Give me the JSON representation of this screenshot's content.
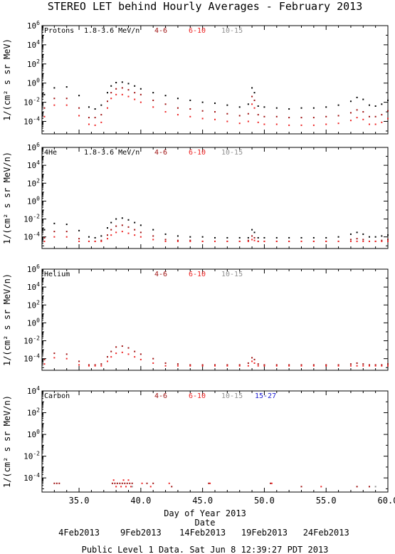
{
  "title": "STEREO LET behind Hourly Averages - February 2013",
  "footer": "Public Level 1 Data. Sat Jun  8 12:39:27 PDT 2013",
  "xaxis": {
    "label": "Day of Year 2013",
    "range": [
      32,
      60
    ],
    "tick_labels": [
      "35.0",
      "40.0",
      "45.0",
      "50.0",
      "55.0",
      "60.0"
    ],
    "date_title": "Date",
    "date_labels": [
      "4Feb2013",
      "9Feb2013",
      "14Feb2013",
      "19Feb2013",
      "24Feb2013"
    ]
  },
  "colors": {
    "black": "#000000",
    "darkred": "#9e1010",
    "red": "#ee2222",
    "gray": "#909090",
    "blue": "#1a1ad0"
  },
  "chart_data": [
    {
      "type": "scatter",
      "panel": "Protons",
      "ylabel": "1/(cm² s sr MeV)",
      "ylog": true,
      "yrange_exp": [
        -5.3,
        6
      ],
      "ytick_exps": [
        6,
        4,
        2,
        0,
        -2,
        -4
      ],
      "legend": [
        "1.8-3.6 MeV/n",
        "4-6",
        "6-10",
        "10-15"
      ],
      "series": [
        {
          "name": "1.8-3.6 MeV/n",
          "color": "black",
          "x": [
            32.2,
            33,
            34,
            35,
            35.8,
            36.3,
            36.8,
            37.3,
            37.6,
            38,
            38.5,
            39,
            39.5,
            40,
            41,
            42,
            43,
            44,
            45,
            46,
            47,
            48,
            48.7,
            49,
            49.2,
            49.5,
            50,
            51,
            52,
            53,
            54,
            55,
            56,
            57,
            57.5,
            58,
            58.5,
            59,
            59.5,
            60
          ],
          "log_y": [
            -1.2,
            -0.5,
            -0.4,
            -1.3,
            -2.5,
            -2.7,
            -2.3,
            -1.0,
            -0.3,
            0.05,
            0.1,
            -0.05,
            -0.3,
            -0.6,
            -1.0,
            -1.3,
            -1.6,
            -1.8,
            -2.0,
            -2.1,
            -2.3,
            -2.5,
            -2.2,
            -0.5,
            -1.0,
            -2.4,
            -2.5,
            -2.6,
            -2.7,
            -2.6,
            -2.6,
            -2.5,
            -2.3,
            -1.9,
            -1.5,
            -1.7,
            -2.3,
            -2.4,
            -2.2,
            -1.8
          ]
        },
        {
          "name": "4-6",
          "color": "darkred",
          "x": [
            32.2,
            33,
            34,
            35,
            35.8,
            36.3,
            36.8,
            37.3,
            37.6,
            38,
            38.5,
            39,
            39.5,
            40,
            41,
            42,
            43,
            44,
            45,
            46,
            47,
            48,
            48.7,
            49,
            49.2,
            49.5,
            50,
            51,
            52,
            53,
            54,
            55,
            56,
            57,
            57.5,
            58,
            58.5,
            59,
            59.5,
            60
          ],
          "log_y": [
            -2.6,
            -1.6,
            -1.6,
            -2.6,
            -3.6,
            -3.6,
            -3.3,
            -1.9,
            -1.0,
            -0.6,
            -0.5,
            -0.7,
            -1.0,
            -1.2,
            -1.8,
            -2.2,
            -2.6,
            -2.7,
            -2.9,
            -3.0,
            -3.2,
            -3.4,
            -3.2,
            -1.4,
            -1.8,
            -3.3,
            -3.5,
            -3.5,
            -3.6,
            -3.6,
            -3.6,
            -3.5,
            -3.4,
            -3.1,
            -2.8,
            -3.0,
            -3.5,
            -3.5,
            -3.3,
            -2.9
          ]
        },
        {
          "name": "6-10",
          "color": "red",
          "x": [
            32.2,
            33,
            34,
            35,
            35.8,
            36.3,
            36.8,
            37.3,
            37.6,
            38,
            38.5,
            39,
            39.5,
            40,
            41,
            42,
            43,
            44,
            45,
            46,
            47,
            48,
            48.7,
            49,
            49.2,
            49.5,
            50,
            51,
            52,
            53,
            54,
            55,
            56,
            57,
            57.5,
            58,
            58.5,
            59,
            59.5,
            60
          ],
          "log_y": [
            -3.5,
            -2.3,
            -2.3,
            -3.4,
            -4.3,
            -4.4,
            -4.1,
            -2.6,
            -1.6,
            -1.2,
            -1.2,
            -1.4,
            -1.7,
            -2.0,
            -2.5,
            -3.0,
            -3.3,
            -3.5,
            -3.7,
            -3.8,
            -4.0,
            -4.2,
            -4.0,
            -2.2,
            -2.6,
            -4.1,
            -4.3,
            -4.3,
            -4.4,
            -4.4,
            -4.4,
            -4.3,
            -4.2,
            -3.9,
            -3.6,
            -3.8,
            -4.3,
            -4.3,
            -4.1,
            -3.7
          ]
        }
      ]
    },
    {
      "type": "scatter",
      "panel": "4He",
      "ylabel": "1/(cm² s sr MeV/n)",
      "ylog": true,
      "yrange_exp": [
        -5.3,
        6
      ],
      "ytick_exps": [
        6,
        4,
        2,
        0,
        -2,
        -4
      ],
      "legend": [
        "1.8-3.6 MeV/n",
        "4-6",
        "6-10",
        "10-15"
      ],
      "series": [
        {
          "name": "1.8-3.6 MeV/n",
          "color": "black",
          "x": [
            32.2,
            33,
            34,
            35,
            35.8,
            36.3,
            36.8,
            37.3,
            37.6,
            38,
            38.5,
            39,
            39.5,
            40,
            41,
            42,
            43,
            44,
            45,
            46,
            47,
            48,
            48.7,
            49,
            49.2,
            49.5,
            50,
            51,
            52,
            53,
            54,
            55,
            56,
            57,
            57.5,
            58,
            58.5,
            59,
            59.5,
            60
          ],
          "log_y": [
            -3.2,
            -2.5,
            -2.6,
            -3.3,
            -4.0,
            -4.1,
            -3.9,
            -3.0,
            -2.4,
            -2.0,
            -1.9,
            -2.1,
            -2.4,
            -2.7,
            -3.2,
            -3.7,
            -3.9,
            -4.0,
            -4.0,
            -4.1,
            -4.1,
            -4.1,
            -4.1,
            -3.2,
            -3.5,
            -4.1,
            -4.1,
            -4.1,
            -4.1,
            -4.1,
            -4.1,
            -4.1,
            -4.0,
            -3.7,
            -3.5,
            -3.7,
            -4.0,
            -4.0,
            -3.9,
            -3.8
          ]
        },
        {
          "name": "4-6",
          "color": "darkred",
          "x": [
            32.2,
            33,
            34,
            35,
            35.8,
            36.3,
            36.8,
            37.3,
            37.6,
            38,
            38.5,
            39,
            39.5,
            40,
            41,
            42,
            43,
            44,
            45,
            46,
            47,
            48,
            48.7,
            49,
            49.2,
            49.5,
            50,
            51,
            52,
            53,
            54,
            55,
            56,
            57,
            57.5,
            58,
            58.5,
            59,
            59.5,
            60
          ],
          "log_y": [
            -4.1,
            -3.4,
            -3.4,
            -4.2,
            -4.5,
            -4.5,
            -4.4,
            -3.8,
            -3.2,
            -2.8,
            -2.7,
            -2.9,
            -3.2,
            -3.5,
            -3.9,
            -4.3,
            -4.4,
            -4.4,
            -4.5,
            -4.5,
            -4.5,
            -4.5,
            -4.4,
            -3.9,
            -4.1,
            -4.5,
            -4.5,
            -4.5,
            -4.5,
            -4.5,
            -4.5,
            -4.5,
            -4.5,
            -4.3,
            -4.2,
            -4.3,
            -4.5,
            -4.5,
            -4.4,
            -4.3
          ]
        },
        {
          "name": "6-10",
          "color": "red",
          "x": [
            32.2,
            33,
            34,
            35,
            35.8,
            36.3,
            36.8,
            37.3,
            37.6,
            38,
            38.5,
            39,
            39.5,
            40,
            41,
            42,
            43,
            44,
            45,
            46,
            47,
            48,
            48.7,
            49,
            49.2,
            49.5,
            50,
            51,
            52,
            53,
            54,
            55,
            56,
            57,
            57.5,
            58,
            58.5,
            59,
            59.5,
            60
          ],
          "log_y": [
            -4.5,
            -4.0,
            -4.0,
            -4.5,
            -4.5,
            -4.5,
            -4.5,
            -4.2,
            -3.8,
            -3.5,
            -3.4,
            -3.6,
            -3.8,
            -4.0,
            -4.3,
            -4.5,
            -4.5,
            -4.5,
            -4.5,
            -4.5,
            -4.5,
            -4.5,
            -4.5,
            -4.3,
            -4.4,
            -4.5,
            -4.5,
            -4.5,
            -4.5,
            -4.5,
            -4.5,
            -4.5,
            -4.5,
            -4.5,
            -4.5,
            -4.5,
            -4.5,
            -4.5,
            -4.5,
            -4.5
          ]
        }
      ]
    },
    {
      "type": "scatter",
      "panel": "Helium",
      "ylabel": "1/(cm² s sr MeV/n)",
      "ylog": true,
      "yrange_exp": [
        -5.3,
        6
      ],
      "ytick_exps": [
        6,
        4,
        2,
        0,
        -2,
        -4
      ],
      "legend": [
        "4-6",
        "6-10",
        "10-15"
      ],
      "series": [
        {
          "name": "4-6",
          "color": "darkred",
          "x": [
            32.2,
            33,
            34,
            35,
            35.8,
            36.3,
            36.8,
            37.3,
            37.6,
            38,
            38.5,
            39,
            39.5,
            40,
            41,
            42,
            43,
            44,
            45,
            46,
            47,
            48,
            48.7,
            49,
            49.2,
            49.5,
            50,
            51,
            52,
            53,
            54,
            55,
            56,
            57,
            57.5,
            58,
            58.5,
            59,
            59.5,
            60
          ],
          "log_y": [
            -4.1,
            -3.4,
            -3.5,
            -4.3,
            -4.7,
            -4.7,
            -4.6,
            -3.8,
            -3.2,
            -2.7,
            -2.6,
            -2.8,
            -3.2,
            -3.5,
            -4.0,
            -4.5,
            -4.6,
            -4.7,
            -4.7,
            -4.7,
            -4.7,
            -4.7,
            -4.5,
            -3.9,
            -4.1,
            -4.6,
            -4.7,
            -4.7,
            -4.7,
            -4.7,
            -4.7,
            -4.7,
            -4.7,
            -4.6,
            -4.5,
            -4.6,
            -4.7,
            -4.7,
            -4.7,
            -4.6
          ]
        },
        {
          "name": "6-10",
          "color": "red",
          "x": [
            32.2,
            33,
            34,
            35,
            35.8,
            36.3,
            36.8,
            37.3,
            37.6,
            38,
            38.5,
            39,
            39.5,
            40,
            41,
            42,
            43,
            44,
            45,
            46,
            47,
            48,
            48.7,
            49,
            49.2,
            49.5,
            50,
            51,
            52,
            53,
            54,
            55,
            56,
            57,
            57.5,
            58,
            58.5,
            59,
            59.5,
            60
          ],
          "log_y": [
            -4.6,
            -3.9,
            -4.0,
            -4.7,
            -4.8,
            -4.8,
            -4.8,
            -4.3,
            -3.8,
            -3.4,
            -3.3,
            -3.5,
            -3.8,
            -4.1,
            -4.5,
            -4.8,
            -4.8,
            -4.8,
            -4.8,
            -4.8,
            -4.8,
            -4.8,
            -4.8,
            -4.3,
            -4.5,
            -4.8,
            -4.8,
            -4.8,
            -4.8,
            -4.8,
            -4.8,
            -4.8,
            -4.8,
            -4.8,
            -4.8,
            -4.8,
            -4.8,
            -4.8,
            -4.8,
            -4.8
          ]
        }
      ]
    },
    {
      "type": "scatter",
      "panel": "Carbon",
      "ylabel": "1/(cm² s sr MeV/n)",
      "ylog": true,
      "yrange_exp": [
        -5.3,
        4
      ],
      "ytick_exps": [
        4,
        2,
        0,
        -2,
        -4
      ],
      "legend": [
        "4-6",
        "6-10",
        "10-15",
        "15-27"
      ],
      "series": [
        {
          "name": "4-6",
          "color": "darkred",
          "x": [
            33.0,
            33.2,
            33.4,
            37.7,
            37.9,
            38.1,
            38.3,
            38.5,
            38.7,
            38.9,
            39.1,
            39.3,
            40.5,
            41.0,
            42.5,
            45.5,
            50.5,
            53.0,
            57.5,
            58.5
          ],
          "log_y": [
            -4.5,
            -4.5,
            -4.5,
            -4.5,
            -4.5,
            -4.5,
            -4.5,
            -4.5,
            -4.5,
            -4.5,
            -4.5,
            -4.5,
            -4.5,
            -4.5,
            -4.8,
            -4.5,
            -4.5,
            -4.8,
            -4.8,
            -4.8
          ]
        },
        {
          "name": "6-10",
          "color": "red",
          "x": [
            37.8,
            38.0,
            38.4,
            38.6,
            38.8,
            39.0,
            39.2,
            40.1,
            40.8,
            42.3,
            45.6,
            50.6,
            54.6
          ],
          "log_y": [
            -4.2,
            -4.8,
            -4.8,
            -4.2,
            -4.8,
            -4.2,
            -4.8,
            -4.5,
            -4.8,
            -4.5,
            -4.5,
            -4.5,
            -4.8
          ]
        },
        {
          "name": "10-15",
          "color": "gray",
          "x": [
            39.3,
            59.0
          ],
          "log_y": [
            -4.8,
            -4.8
          ]
        }
      ]
    }
  ]
}
